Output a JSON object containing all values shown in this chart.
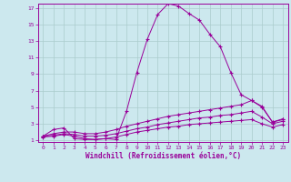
{
  "xlabel": "Windchill (Refroidissement éolien,°C)",
  "bg_color": "#cce8ee",
  "line_color": "#990099",
  "grid_color": "#aacccc",
  "xmin": 0,
  "xmax": 23,
  "ymin": 1,
  "ymax": 17,
  "yticks": [
    1,
    3,
    5,
    7,
    9,
    11,
    13,
    15,
    17
  ],
  "xticks": [
    0,
    1,
    2,
    3,
    4,
    5,
    6,
    7,
    8,
    9,
    10,
    11,
    12,
    13,
    14,
    15,
    16,
    17,
    18,
    19,
    20,
    21,
    22,
    23
  ],
  "line1_x": [
    0,
    1,
    2,
    3,
    4,
    5,
    6,
    7,
    8,
    9,
    10,
    11,
    12,
    13,
    14,
    15,
    16,
    17,
    18,
    19,
    20,
    21,
    22,
    23
  ],
  "line1_y": [
    1.5,
    2.3,
    2.5,
    1.2,
    1.1,
    1.1,
    1.2,
    1.1,
    4.5,
    9.2,
    13.2,
    16.2,
    17.5,
    17.2,
    16.3,
    15.5,
    13.8,
    12.3,
    9.2,
    6.5,
    5.8,
    5.0,
    3.2,
    3.5
  ],
  "line2_x": [
    0,
    1,
    2,
    3,
    4,
    5,
    6,
    7,
    8,
    9,
    10,
    11,
    12,
    13,
    14,
    15,
    16,
    17,
    18,
    19,
    20,
    21,
    22,
    23
  ],
  "line2_y": [
    1.5,
    1.8,
    2.0,
    2.0,
    1.8,
    1.8,
    2.0,
    2.3,
    2.7,
    3.0,
    3.3,
    3.6,
    3.9,
    4.1,
    4.3,
    4.5,
    4.7,
    4.9,
    5.1,
    5.3,
    5.8,
    5.1,
    3.2,
    3.6
  ],
  "line3_x": [
    0,
    1,
    2,
    3,
    4,
    5,
    6,
    7,
    8,
    9,
    10,
    11,
    12,
    13,
    14,
    15,
    16,
    17,
    18,
    19,
    20,
    21,
    22,
    23
  ],
  "line3_y": [
    1.5,
    1.6,
    1.8,
    1.7,
    1.5,
    1.5,
    1.6,
    1.8,
    2.1,
    2.4,
    2.6,
    2.9,
    3.1,
    3.3,
    3.5,
    3.7,
    3.8,
    4.0,
    4.1,
    4.3,
    4.5,
    3.8,
    3.0,
    3.3
  ],
  "line4_x": [
    0,
    1,
    2,
    3,
    4,
    5,
    6,
    7,
    8,
    9,
    10,
    11,
    12,
    13,
    14,
    15,
    16,
    17,
    18,
    19,
    20,
    21,
    22,
    23
  ],
  "line4_y": [
    1.4,
    1.5,
    1.7,
    1.5,
    1.2,
    1.1,
    1.2,
    1.4,
    1.7,
    2.0,
    2.2,
    2.4,
    2.6,
    2.7,
    2.9,
    3.0,
    3.1,
    3.2,
    3.3,
    3.4,
    3.5,
    3.0,
    2.6,
    2.9
  ]
}
